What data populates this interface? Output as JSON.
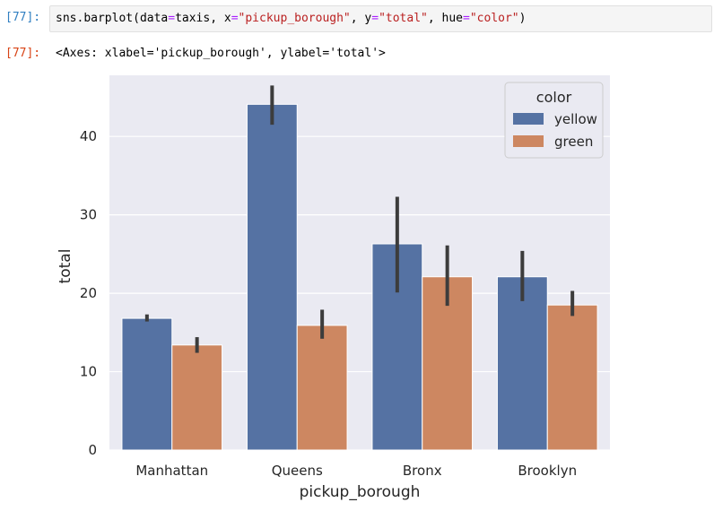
{
  "cell": {
    "in_prompt": "[77]:",
    "code": {
      "p1": "sns",
      "p2": ".",
      "p3": "barplot",
      "p4": "(",
      "p5": "data",
      "p6": "=",
      "p7": "taxis",
      "p8": ", ",
      "p9": "x",
      "p10": "=",
      "p11": "\"pickup_borough\"",
      "p12": ", ",
      "p13": "y",
      "p14": "=",
      "p15": "\"total\"",
      "p16": ", ",
      "p17": "hue",
      "p18": "=",
      "p19": "\"color\"",
      "p20": ")"
    },
    "out_prompt": "[77]:",
    "output_text": "<Axes: xlabel='pickup_borough', ylabel='total'>"
  },
  "chart_data": {
    "type": "bar",
    "categories": [
      "Manhattan",
      "Queens",
      "Bronx",
      "Brooklyn"
    ],
    "series": [
      {
        "name": "yellow",
        "color": "#5572a3",
        "values": [
          16.8,
          44.1,
          26.3,
          22.1
        ],
        "ci": [
          [
            16.4,
            17.3
          ],
          [
            41.5,
            46.5
          ],
          [
            20.1,
            32.3
          ],
          [
            19.0,
            25.4
          ]
        ]
      },
      {
        "name": "green",
        "color": "#cd8761",
        "values": [
          13.4,
          15.9,
          22.1,
          18.5
        ],
        "ci": [
          [
            12.4,
            14.4
          ],
          [
            14.2,
            17.9
          ],
          [
            18.4,
            26.1
          ],
          [
            17.1,
            20.3
          ]
        ]
      }
    ],
    "xlabel": "pickup_borough",
    "ylabel": "total",
    "ylim": [
      0,
      47.8
    ],
    "yticks": [
      0,
      10,
      20,
      30,
      40
    ],
    "legend": {
      "title": "color",
      "placement": "top-right"
    },
    "grid": true,
    "background": "#eaeaf2",
    "errorbar_color": "#3c3c3c"
  }
}
